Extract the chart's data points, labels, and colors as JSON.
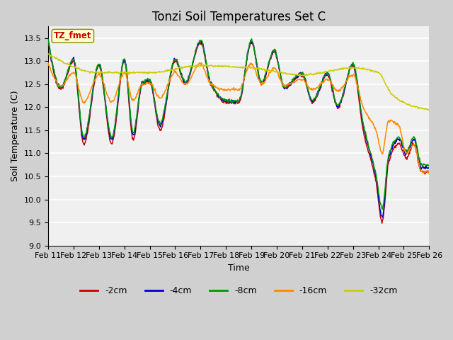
{
  "title": "Tonzi Soil Temperatures Set C",
  "xlabel": "Time",
  "ylabel": "Soil Temperature (C)",
  "ylim": [
    9.0,
    13.75
  ],
  "yticks": [
    9.0,
    9.5,
    10.0,
    10.5,
    11.0,
    11.5,
    12.0,
    12.5,
    13.0,
    13.5
  ],
  "legend_labels": [
    "-2cm",
    "-4cm",
    "-8cm",
    "-16cm",
    "-32cm"
  ],
  "legend_colors": [
    "#cc0000",
    "#0000cc",
    "#009900",
    "#ff8800",
    "#cccc00"
  ],
  "annotation_text": "TZ_fmet",
  "xtick_labels": [
    "Feb 11",
    "Feb 12",
    "Feb 13",
    "Feb 14",
    "Feb 15",
    "Feb 16",
    "Feb 17",
    "Feb 18",
    "Feb 19",
    "Feb 20",
    "Feb 21",
    "Feb 22",
    "Feb 23",
    "Feb 24",
    "Feb 25",
    "Feb 26"
  ],
  "title_fontsize": 12,
  "axis_fontsize": 9,
  "tick_fontsize": 8
}
